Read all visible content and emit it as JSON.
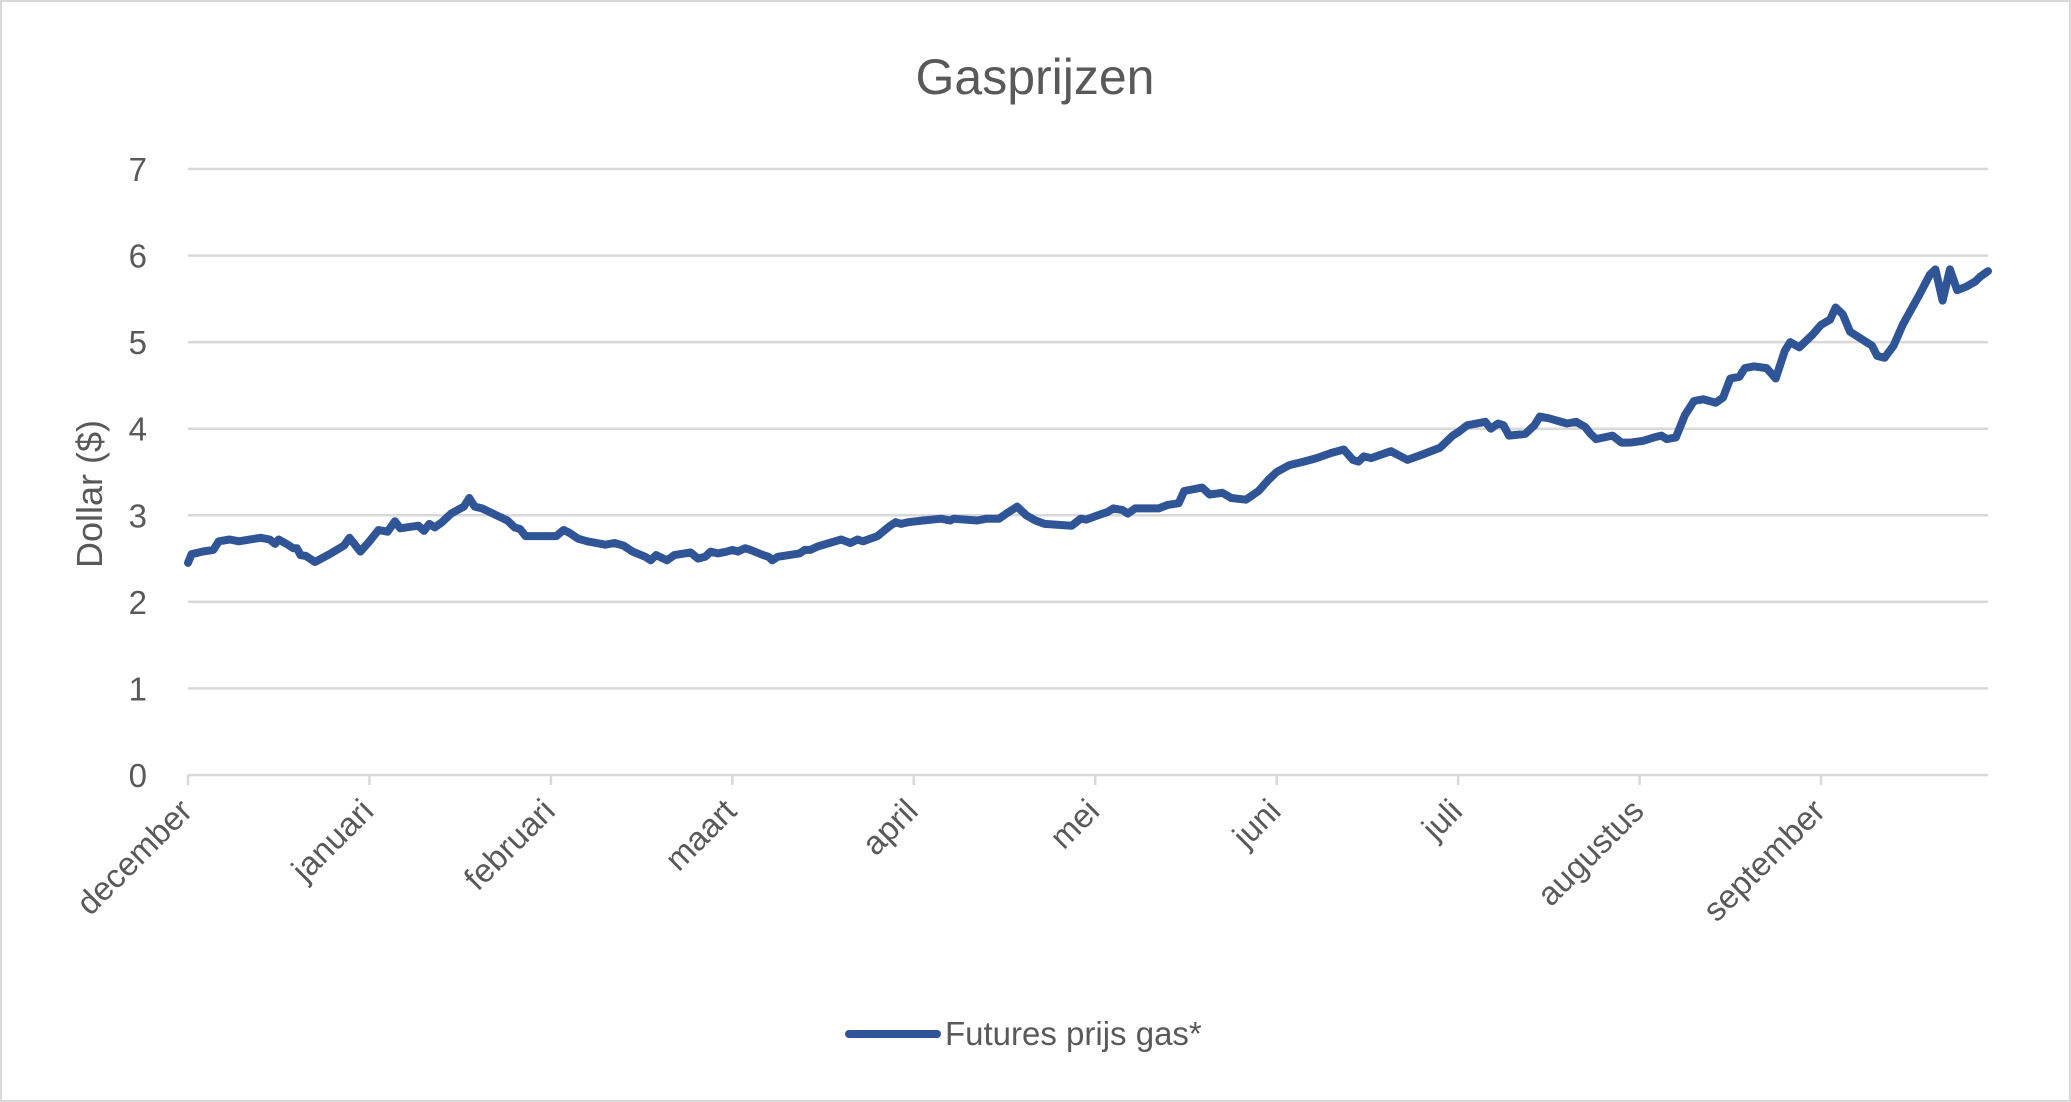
{
  "chart_data": {
    "type": "line",
    "title": "Gasprijzen",
    "ylabel": "Dollar ($)",
    "xlabel": "",
    "ylim": [
      0,
      7
    ],
    "yticks": [
      0,
      1,
      2,
      3,
      4,
      5,
      6,
      7
    ],
    "grid": true,
    "legend_position": "bottom",
    "x_tick_labels": [
      "december",
      "januari",
      "februari",
      "maart",
      "april",
      "mei",
      "juni",
      "juli",
      "augustus",
      "september"
    ],
    "series": [
      {
        "name": "Futures prijs gas*",
        "color": "#2f5597",
        "points": [
          [
            0.0,
            2.45
          ],
          [
            0.02,
            2.55
          ],
          [
            0.08,
            2.58
          ],
          [
            0.14,
            2.6
          ],
          [
            0.17,
            2.7
          ],
          [
            0.23,
            2.72
          ],
          [
            0.28,
            2.7
          ],
          [
            0.4,
            2.74
          ],
          [
            0.45,
            2.72
          ],
          [
            0.48,
            2.67
          ],
          [
            0.5,
            2.72
          ],
          [
            0.55,
            2.66
          ],
          [
            0.58,
            2.62
          ],
          [
            0.6,
            2.62
          ],
          [
            0.62,
            2.54
          ],
          [
            0.65,
            2.53
          ],
          [
            0.7,
            2.46
          ],
          [
            0.78,
            2.55
          ],
          [
            0.86,
            2.65
          ],
          [
            0.89,
            2.74
          ],
          [
            0.95,
            2.58
          ],
          [
            1.0,
            2.7
          ],
          [
            1.05,
            2.83
          ],
          [
            1.1,
            2.81
          ],
          [
            1.14,
            2.93
          ],
          [
            1.17,
            2.85
          ],
          [
            1.27,
            2.88
          ],
          [
            1.3,
            2.82
          ],
          [
            1.33,
            2.9
          ],
          [
            1.36,
            2.86
          ],
          [
            1.4,
            2.92
          ],
          [
            1.45,
            3.02
          ],
          [
            1.52,
            3.1
          ],
          [
            1.55,
            3.2
          ],
          [
            1.58,
            3.1
          ],
          [
            1.62,
            3.08
          ],
          [
            1.7,
            3.0
          ],
          [
            1.76,
            2.94
          ],
          [
            1.8,
            2.86
          ],
          [
            1.83,
            2.84
          ],
          [
            1.86,
            2.76
          ],
          [
            1.92,
            2.76
          ],
          [
            2.03,
            2.76
          ],
          [
            2.07,
            2.83
          ],
          [
            2.1,
            2.8
          ],
          [
            2.15,
            2.73
          ],
          [
            2.2,
            2.7
          ],
          [
            2.3,
            2.66
          ],
          [
            2.35,
            2.68
          ],
          [
            2.4,
            2.65
          ],
          [
            2.45,
            2.58
          ],
          [
            2.52,
            2.52
          ],
          [
            2.55,
            2.48
          ],
          [
            2.58,
            2.54
          ],
          [
            2.64,
            2.48
          ],
          [
            2.68,
            2.54
          ],
          [
            2.77,
            2.57
          ],
          [
            2.81,
            2.5
          ],
          [
            2.85,
            2.52
          ],
          [
            2.88,
            2.58
          ],
          [
            2.92,
            2.56
          ],
          [
            2.97,
            2.58
          ],
          [
            3.0,
            2.6
          ],
          [
            3.03,
            2.58
          ],
          [
            3.07,
            2.62
          ],
          [
            3.1,
            2.6
          ],
          [
            3.17,
            2.54
          ],
          [
            3.2,
            2.52
          ],
          [
            3.22,
            2.48
          ],
          [
            3.25,
            2.52
          ],
          [
            3.37,
            2.56
          ],
          [
            3.4,
            2.6
          ],
          [
            3.43,
            2.6
          ],
          [
            3.47,
            2.64
          ],
          [
            3.6,
            2.72
          ],
          [
            3.65,
            2.68
          ],
          [
            3.69,
            2.72
          ],
          [
            3.72,
            2.7
          ],
          [
            3.8,
            2.76
          ],
          [
            3.87,
            2.88
          ],
          [
            3.9,
            2.92
          ],
          [
            3.93,
            2.9
          ],
          [
            3.97,
            2.92
          ],
          [
            4.05,
            2.94
          ],
          [
            4.15,
            2.96
          ],
          [
            4.2,
            2.94
          ],
          [
            4.22,
            2.96
          ],
          [
            4.35,
            2.94
          ],
          [
            4.4,
            2.96
          ],
          [
            4.47,
            2.96
          ],
          [
            4.51,
            3.02
          ],
          [
            4.57,
            3.1
          ],
          [
            4.62,
            3.0
          ],
          [
            4.67,
            2.94
          ],
          [
            4.72,
            2.9
          ],
          [
            4.87,
            2.88
          ],
          [
            4.92,
            2.96
          ],
          [
            4.95,
            2.95
          ],
          [
            5.0,
            2.99
          ],
          [
            5.07,
            3.04
          ],
          [
            5.1,
            3.08
          ],
          [
            5.15,
            3.06
          ],
          [
            5.18,
            3.02
          ],
          [
            5.22,
            3.08
          ],
          [
            5.35,
            3.08
          ],
          [
            5.4,
            3.12
          ],
          [
            5.46,
            3.14
          ],
          [
            5.49,
            3.28
          ],
          [
            5.59,
            3.32
          ],
          [
            5.63,
            3.24
          ],
          [
            5.7,
            3.26
          ],
          [
            5.75,
            3.2
          ],
          [
            5.83,
            3.18
          ],
          [
            5.9,
            3.28
          ],
          [
            5.95,
            3.4
          ],
          [
            6.0,
            3.5
          ],
          [
            6.07,
            3.58
          ],
          [
            6.15,
            3.62
          ],
          [
            6.22,
            3.66
          ],
          [
            6.3,
            3.72
          ],
          [
            6.37,
            3.76
          ],
          [
            6.42,
            3.64
          ],
          [
            6.45,
            3.62
          ],
          [
            6.48,
            3.68
          ],
          [
            6.52,
            3.66
          ],
          [
            6.63,
            3.74
          ],
          [
            6.72,
            3.64
          ],
          [
            6.8,
            3.7
          ],
          [
            6.9,
            3.78
          ],
          [
            6.97,
            3.92
          ],
          [
            7.0,
            3.96
          ],
          [
            7.05,
            4.04
          ],
          [
            7.15,
            4.08
          ],
          [
            7.18,
            4.0
          ],
          [
            7.22,
            4.06
          ],
          [
            7.25,
            4.04
          ],
          [
            7.28,
            3.92
          ],
          [
            7.37,
            3.94
          ],
          [
            7.42,
            4.04
          ],
          [
            7.45,
            4.14
          ],
          [
            7.5,
            4.12
          ],
          [
            7.6,
            4.06
          ],
          [
            7.65,
            4.08
          ],
          [
            7.7,
            4.02
          ],
          [
            7.73,
            3.94
          ],
          [
            7.76,
            3.88
          ],
          [
            7.85,
            3.92
          ],
          [
            7.9,
            3.84
          ],
          [
            7.95,
            3.84
          ],
          [
            8.02,
            3.86
          ],
          [
            8.08,
            3.9
          ],
          [
            8.12,
            3.92
          ],
          [
            8.15,
            3.88
          ],
          [
            8.2,
            3.9
          ],
          [
            8.25,
            4.16
          ],
          [
            8.3,
            4.32
          ],
          [
            8.35,
            4.34
          ],
          [
            8.42,
            4.3
          ],
          [
            8.46,
            4.36
          ],
          [
            8.5,
            4.58
          ],
          [
            8.55,
            4.6
          ],
          [
            8.58,
            4.7
          ],
          [
            8.63,
            4.72
          ],
          [
            8.7,
            4.7
          ],
          [
            8.75,
            4.58
          ],
          [
            8.8,
            4.9
          ],
          [
            8.83,
            5.0
          ],
          [
            8.88,
            4.94
          ],
          [
            8.95,
            5.08
          ],
          [
            9.0,
            5.2
          ],
          [
            9.05,
            5.26
          ],
          [
            9.08,
            5.4
          ],
          [
            9.12,
            5.32
          ],
          [
            9.16,
            5.12
          ],
          [
            9.28,
            4.96
          ],
          [
            9.31,
            4.84
          ],
          [
            9.35,
            4.82
          ],
          [
            9.4,
            4.96
          ],
          [
            9.45,
            5.2
          ],
          [
            9.55,
            5.58
          ],
          [
            9.6,
            5.78
          ],
          [
            9.63,
            5.84
          ],
          [
            9.67,
            5.48
          ],
          [
            9.71,
            5.84
          ],
          [
            9.75,
            5.6
          ],
          [
            9.8,
            5.64
          ],
          [
            9.85,
            5.7
          ],
          [
            9.88,
            5.76
          ],
          [
            9.92,
            5.82
          ]
        ]
      }
    ]
  }
}
